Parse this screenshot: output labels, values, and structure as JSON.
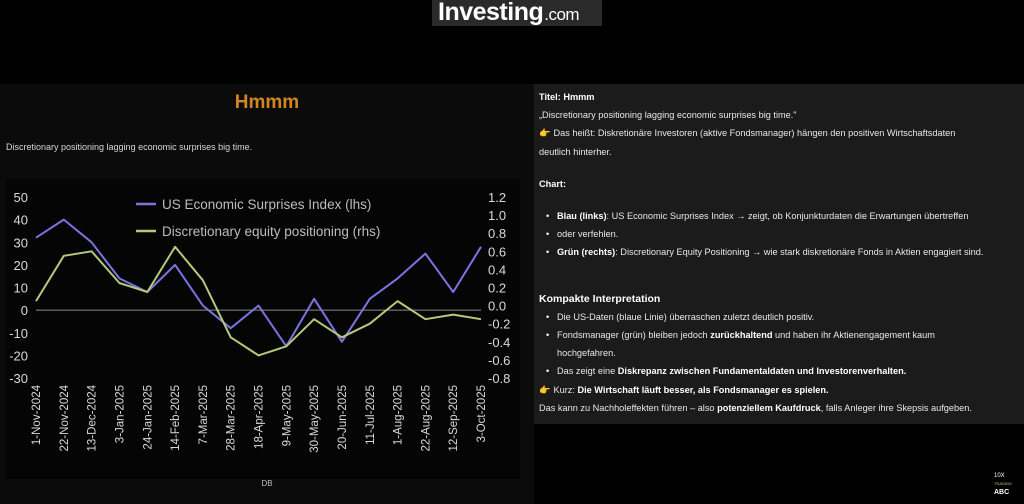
{
  "header": {
    "logo_main": "Investing",
    "logo_domain": ".com"
  },
  "slide": {
    "title": "Hmmm",
    "subtitle": "Discretionary positioning lagging economic surprises big time.",
    "source": "DB"
  },
  "chart_data": {
    "type": "line",
    "x": [
      "1-Nov-2024",
      "22-Nov-2024",
      "13-Dec-2024",
      "3-Jan-2025",
      "24-Jan-2025",
      "14-Feb-2025",
      "7-Mar-2025",
      "28-Mar-2025",
      "18-Apr-2025",
      "9-May-2025",
      "30-May-2025",
      "20-Jun-2025",
      "11-Jul-2025",
      "1-Aug-2025",
      "22-Aug-2025",
      "12-Sep-2025",
      "3-Oct-2025"
    ],
    "x_tick_labels": [
      "1-Nov-2024",
      "22-Nov-2024",
      "13-Dec-2024",
      "3-Jan-2025",
      "24-Jan-2025",
      "14-Feb-2025",
      "7-Mar-2025",
      "28-Mar-2025",
      "18-Apr-2025",
      "9-May-2025",
      "30-May-2025",
      "20-Jun-2025",
      "11-Jul-2025",
      "1-Aug-2025",
      "22-Aug-2025",
      "12-Sep-2025",
      "3-Oct-2025"
    ],
    "y_left_ticks": [
      "50",
      "40",
      "30",
      "20",
      "10",
      "0",
      "-10",
      "-20",
      "-30"
    ],
    "y_right_ticks": [
      "1.2",
      "1.0",
      "0.8",
      "0.6",
      "0.4",
      "0.2",
      "0.0",
      "-0.2",
      "-0.4",
      "-0.6",
      "-0.8"
    ],
    "ylim_left": [
      -30,
      50
    ],
    "ylim_right": [
      -0.8,
      1.2
    ],
    "legend_position": "top-left",
    "series": [
      {
        "name": "US Economic Surprises Index (lhs)",
        "axis": "left",
        "color": "#7b74e0",
        "values": [
          32,
          40,
          30,
          14,
          8,
          20,
          2,
          -8,
          2,
          -16,
          5,
          -14,
          5,
          14,
          25,
          8,
          28
        ]
      },
      {
        "name": "Discretionary equity positioning (rhs)",
        "axis": "right",
        "color": "#b5c97a",
        "values": [
          0.05,
          0.55,
          0.6,
          0.25,
          0.15,
          0.65,
          0.28,
          -0.35,
          -0.55,
          -0.45,
          -0.15,
          -0.35,
          -0.2,
          0.05,
          -0.15,
          -0.1,
          -0.15
        ]
      }
    ]
  },
  "panel": {
    "title_line": "Titel: Hmmm",
    "quote": "„Discretionary positioning lagging economic surprises big time.\"",
    "meaning_lead": "Das heißt: Diskretionäre Investoren (aktive Fondsmanager) hängen den positiven Wirtschaftsdaten",
    "meaning_tail": "deutlich hinterher.",
    "chart_heading": "Chart:",
    "blue_label": "Blau (links)",
    "blue_text": ": US Economic Surprises Index → zeigt, ob Konjunkturdaten die Erwartungen übertreffen",
    "blue_tail": "oder verfehlen.",
    "green_label": "Grün (rechts)",
    "green_text": ": Discretionary Equity Positioning → wie stark diskretionäre Fonds in Aktien engagiert sind.",
    "interp_heading": "Kompakte Interpretation",
    "bullet1": "Die US-Daten (blaue Linie) überraschen zuletzt deutlich positiv.",
    "bullet2_a": "Fondsmanager (grün) bleiben jedoch ",
    "bullet2_b": "zurückhaltend",
    "bullet2_c": " und haben ihr Aktienengagement kaum",
    "bullet2_tail": "hochgefahren.",
    "bullet3_a": "Das zeigt eine ",
    "bullet3_b": "Diskrepanz zwischen Fundamentaldaten und Investorenverhalten.",
    "kurz_a": "Kurz: ",
    "kurz_b": "Die Wirtschaft läuft besser, als Fondsmanager es spielen.",
    "final_a": "Das kann zu Nachholeffekten führen – also ",
    "final_b": "potenziellem Kaufdruck",
    "final_c": ", falls Anleger ihre Skepsis aufgeben."
  },
  "badge": {
    "line1": "10X",
    "line2": "TRADING",
    "line3": "ABC"
  },
  "icons": {
    "pointing": "pointing-hand-icon"
  }
}
